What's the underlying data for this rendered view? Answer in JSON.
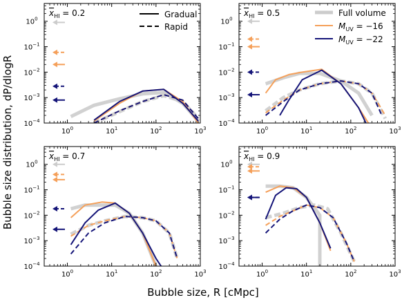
{
  "figure": {
    "xlabel": "Bubble size, R [cMpc]",
    "ylabel": "Bubble size distribution, dP/dlogR"
  },
  "colors": {
    "full_volume": "#cccccc",
    "muv_16": "#f5a05a",
    "muv_22": "#141478"
  },
  "legend": {
    "gradual": "Gradual",
    "rapid": "Rapid",
    "full_volume": "Full volume",
    "muv_16": "M_UV = -16",
    "muv_22": "M_UV = -22"
  },
  "chart_data": [
    {
      "type": "line",
      "panel_label": "x_HI = 0.2",
      "xscale": "log",
      "yscale": "log",
      "xlim": [
        0.3,
        1000
      ],
      "ylim": [
        0.0001,
        5
      ],
      "xticks": [
        "10^0",
        "10^1",
        "10^2",
        "10^3"
      ],
      "yticks": [
        "10^-4",
        "10^-3",
        "10^-2",
        "10^-1",
        "10^0"
      ],
      "series": [
        {
          "name": "Full volume",
          "style": "gradual",
          "x": [
            1.2,
            4,
            15,
            50,
            150,
            400,
            900
          ],
          "y": [
            0.00018,
            0.0005,
            0.0009,
            0.0014,
            0.0016,
            0.0006,
            0.00012
          ]
        },
        {
          "name": "Full volume",
          "style": "rapid",
          "x": [
            4,
            15,
            50,
            150,
            400,
            900
          ],
          "y": [
            0.0001,
            0.00028,
            0.0007,
            0.0012,
            0.0007,
            0.00015
          ]
        },
        {
          "name": "M_UV = -16",
          "style": "gradual",
          "x": [
            4,
            15,
            50,
            150,
            400,
            900
          ],
          "y": [
            0.00012,
            0.0006,
            0.0018,
            0.0021,
            0.0007,
            0.0001
          ]
        },
        {
          "name": "M_UV = -16",
          "style": "rapid",
          "x": [
            4,
            15,
            50,
            150,
            400,
            900
          ],
          "y": [
            0.0001,
            0.0003,
            0.0007,
            0.0013,
            0.0008,
            0.00015
          ]
        },
        {
          "name": "M_UV = -22",
          "style": "gradual",
          "x": [
            4,
            15,
            50,
            150,
            400,
            900
          ],
          "y": [
            0.00013,
            0.0007,
            0.0018,
            0.0021,
            0.0006,
            0.00012
          ]
        },
        {
          "name": "M_UV = -22",
          "style": "rapid",
          "x": [
            4,
            15,
            50,
            150,
            400,
            900
          ],
          "y": [
            0.0001,
            0.0003,
            0.0007,
            0.0013,
            0.0008,
            0.00015
          ]
        }
      ],
      "arrows": [
        {
          "name": "Full volume",
          "style": "gradual",
          "y": 0.9
        },
        {
          "name": "M_UV = -16",
          "style": "rapid",
          "y": 0.06
        },
        {
          "name": "M_UV = -16",
          "style": "gradual",
          "y": 0.02
        },
        {
          "name": "M_UV = -22",
          "style": "rapid",
          "y": 0.0028
        },
        {
          "name": "M_UV = -22",
          "style": "gradual",
          "y": 0.0008
        }
      ]
    },
    {
      "type": "line",
      "panel_label": "x_HI = 0.5",
      "xscale": "log",
      "yscale": "log",
      "xlim": [
        0.3,
        1000
      ],
      "ylim": [
        0.0001,
        5
      ],
      "xticks": [
        "10^0",
        "10^1",
        "10^2",
        "10^3"
      ],
      "yticks": [
        "10^-4",
        "10^-3",
        "10^-2",
        "10^-1",
        "10^0"
      ],
      "series": [
        {
          "name": "Full volume",
          "style": "gradual",
          "x": [
            1.2,
            3,
            7,
            20,
            60,
            150,
            300
          ],
          "y": [
            0.0035,
            0.006,
            0.009,
            0.009,
            0.0045,
            0.0015,
            0.0002
          ]
        },
        {
          "name": "Full volume",
          "style": "rapid",
          "x": [
            1.2,
            3,
            7,
            20,
            60,
            150,
            300,
            600
          ],
          "y": [
            0.0003,
            0.001,
            0.002,
            0.0035,
            0.0045,
            0.0035,
            0.0015,
            0.00015
          ]
        },
        {
          "name": "M_UV = -16",
          "style": "gradual",
          "x": [
            1.2,
            2,
            4,
            8,
            22,
            60,
            150,
            250
          ],
          "y": [
            0.0015,
            0.005,
            0.008,
            0.01,
            0.013,
            0.0035,
            0.0004,
            0.0001
          ]
        },
        {
          "name": "M_UV = -16",
          "style": "rapid",
          "x": [
            1.2,
            3,
            7,
            20,
            60,
            150,
            300,
            600
          ],
          "y": [
            0.00025,
            0.0008,
            0.002,
            0.0035,
            0.0045,
            0.0035,
            0.0015,
            0.0002
          ]
        },
        {
          "name": "M_UV = -22",
          "style": "gradual",
          "x": [
            2.5,
            4,
            8,
            22,
            60,
            150,
            220
          ],
          "y": [
            0.0002,
            0.0008,
            0.005,
            0.012,
            0.0035,
            0.0004,
            0.0001
          ]
        },
        {
          "name": "M_UV = -22",
          "style": "rapid",
          "x": [
            1.2,
            3,
            7,
            20,
            60,
            150,
            300,
            500
          ],
          "y": [
            0.0002,
            0.0007,
            0.002,
            0.0035,
            0.0045,
            0.0035,
            0.0015,
            0.0002
          ]
        }
      ],
      "arrows": [
        {
          "name": "Full volume",
          "style": "gradual",
          "y": 1.0
        },
        {
          "name": "M_UV = -16",
          "style": "rapid",
          "y": 0.2
        },
        {
          "name": "M_UV = -16",
          "style": "gradual",
          "y": 0.1
        },
        {
          "name": "M_UV = -22",
          "style": "rapid",
          "y": 0.01
        },
        {
          "name": "M_UV = -22",
          "style": "gradual",
          "y": 0.0013
        }
      ]
    },
    {
      "type": "line",
      "panel_label": "x_HI = 0.7",
      "xscale": "log",
      "yscale": "log",
      "xlim": [
        0.3,
        1000
      ],
      "ylim": [
        0.0001,
        5
      ],
      "xticks": [
        "10^0",
        "10^1",
        "10^2",
        "10^3"
      ],
      "yticks": [
        "10^-4",
        "10^-3",
        "10^-2",
        "10^-1",
        "10^0"
      ],
      "series": [
        {
          "name": "Full volume",
          "style": "gradual",
          "x": [
            1.2,
            2.5,
            6,
            12,
            25,
            50,
            100
          ],
          "y": [
            0.018,
            0.025,
            0.025,
            0.025,
            0.012,
            0.002,
            0.0001
          ]
        },
        {
          "name": "Full volume",
          "style": "rapid",
          "x": [
            1.2,
            3,
            7,
            20,
            50,
            100,
            200,
            300
          ],
          "y": [
            0.0018,
            0.004,
            0.006,
            0.009,
            0.008,
            0.006,
            0.002,
            0.0002
          ]
        },
        {
          "name": "M_UV = -16",
          "style": "gradual",
          "x": [
            1.2,
            2.5,
            6,
            12,
            25,
            50,
            100
          ],
          "y": [
            0.008,
            0.025,
            0.033,
            0.03,
            0.012,
            0.002,
            0.0001
          ]
        },
        {
          "name": "M_UV = -16",
          "style": "rapid",
          "x": [
            1.2,
            3,
            7,
            20,
            50,
            100,
            200,
            300
          ],
          "y": [
            0.0015,
            0.004,
            0.006,
            0.009,
            0.008,
            0.006,
            0.002,
            0.0002
          ]
        },
        {
          "name": "M_UV = -22",
          "style": "gradual",
          "x": [
            1.2,
            2.5,
            5,
            12,
            25,
            50,
            100,
            130
          ],
          "y": [
            0.0007,
            0.005,
            0.016,
            0.03,
            0.012,
            0.002,
            0.0002,
            0.0001
          ]
        },
        {
          "name": "M_UV = -22",
          "style": "rapid",
          "x": [
            1.2,
            3,
            7,
            20,
            50,
            100,
            200,
            300
          ],
          "y": [
            0.0003,
            0.002,
            0.005,
            0.009,
            0.008,
            0.006,
            0.002,
            0.0002
          ]
        }
      ],
      "arrows": [
        {
          "name": "Full volume",
          "style": "gradual",
          "y": 1.0
        },
        {
          "name": "M_UV = -16",
          "style": "rapid",
          "y": 0.4
        },
        {
          "name": "M_UV = -16",
          "style": "gradual",
          "y": 0.25
        },
        {
          "name": "M_UV = -22",
          "style": "rapid",
          "y": 0.018
        },
        {
          "name": "M_UV = -22",
          "style": "gradual",
          "y": 0.0028
        }
      ]
    },
    {
      "type": "line",
      "panel_label": "x_HI = 0.9",
      "xscale": "log",
      "yscale": "log",
      "xlim": [
        0.3,
        1000
      ],
      "ylim": [
        0.0001,
        5
      ],
      "xticks": [
        "10^0",
        "10^1",
        "10^2",
        "10^3"
      ],
      "yticks": [
        "10^-4",
        "10^-3",
        "10^-2",
        "10^-1",
        "10^0"
      ],
      "series": [
        {
          "name": "Full volume",
          "style": "gradual",
          "x": [
            1.2,
            2.5,
            5,
            10,
            20,
            20
          ],
          "y": [
            0.14,
            0.14,
            0.12,
            0.05,
            0.01,
            0.0001
          ]
        },
        {
          "name": "Full volume",
          "style": "rapid",
          "x": [
            1.2,
            3,
            7,
            15,
            30,
            60,
            120
          ],
          "y": [
            0.008,
            0.012,
            0.02,
            0.025,
            0.018,
            0.002,
            0.00015
          ]
        },
        {
          "name": "M_UV = -16",
          "style": "gradual",
          "x": [
            1.2,
            2.5,
            5,
            10,
            20,
            35
          ],
          "y": [
            0.08,
            0.14,
            0.12,
            0.05,
            0.005,
            0.0004
          ]
        },
        {
          "name": "M_UV = -16",
          "style": "rapid",
          "x": [
            1.2,
            2.5,
            5,
            10,
            20,
            40,
            80,
            120
          ],
          "y": [
            0.004,
            0.009,
            0.015,
            0.025,
            0.02,
            0.008,
            0.0008,
            0.00015
          ]
        },
        {
          "name": "M_UV = -22",
          "style": "gradual",
          "x": [
            1.2,
            2,
            3.5,
            6,
            10,
            20,
            35
          ],
          "y": [
            0.007,
            0.06,
            0.12,
            0.11,
            0.05,
            0.005,
            0.0005
          ]
        },
        {
          "name": "M_UV = -22",
          "style": "rapid",
          "x": [
            1.2,
            2.5,
            5,
            10,
            20,
            40,
            80,
            120
          ],
          "y": [
            0.002,
            0.007,
            0.015,
            0.025,
            0.02,
            0.008,
            0.0008,
            0.00015
          ]
        }
      ],
      "arrows": [
        {
          "name": "Full volume",
          "style": "gradual",
          "y": 1.0
        },
        {
          "name": "M_UV = -16",
          "style": "rapid",
          "y": 0.8
        },
        {
          "name": "M_UV = -16",
          "style": "gradual",
          "y": 0.55
        },
        {
          "name": "M_UV = -22",
          "style": "rapid",
          "y": 0.05
        },
        {
          "name": "M_UV = -22",
          "style": "gradual",
          "y": 0.05
        }
      ]
    }
  ]
}
